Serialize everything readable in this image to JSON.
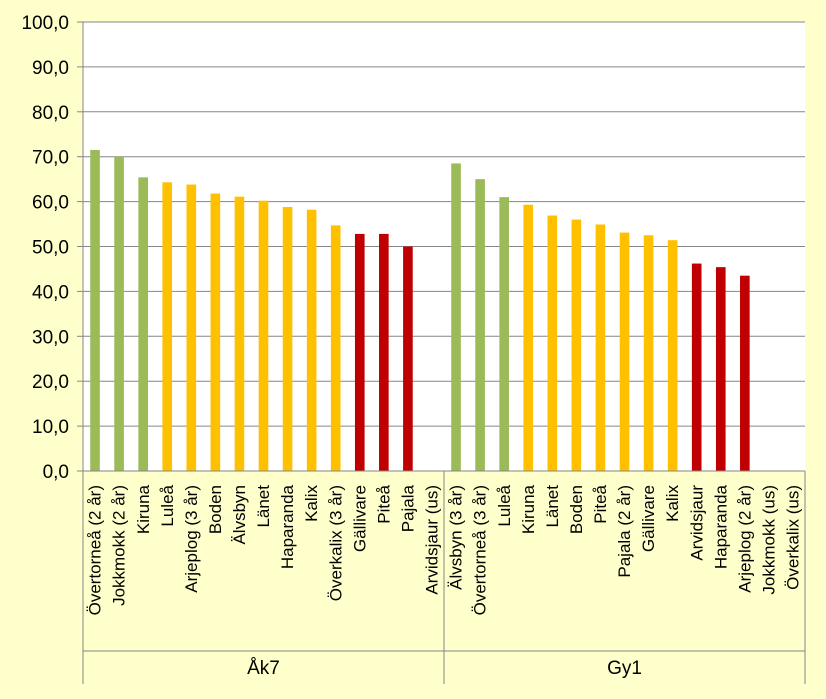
{
  "chart_data": {
    "type": "bar",
    "title": "",
    "xlabel": "",
    "ylabel": "",
    "ylim": [
      0,
      100
    ],
    "y_ticks": [
      "0,0",
      "10,0",
      "20,0",
      "30,0",
      "40,0",
      "50,0",
      "60,0",
      "70,0",
      "80,0",
      "90,0",
      "100,0"
    ],
    "grid": true,
    "legend": "none",
    "colors": {
      "green": "#9BBB59",
      "yellow": "#FFC000",
      "red": "#C00000",
      "plot_background": "#FFFFFF",
      "page_background": "#FFFFCC",
      "gridline": "#868686"
    },
    "groups": [
      {
        "label": "Åk7",
        "bars": [
          {
            "category": "Övertorneå (2 år)",
            "value": 71.5,
            "color": "green"
          },
          {
            "category": "Jokkmokk (2 år)",
            "value": 70.0,
            "color": "green"
          },
          {
            "category": "Kiruna",
            "value": 65.4,
            "color": "green"
          },
          {
            "category": "Luleå",
            "value": 64.3,
            "color": "yellow"
          },
          {
            "category": "Arjeplog (3 år)",
            "value": 63.8,
            "color": "yellow"
          },
          {
            "category": "Boden",
            "value": 61.8,
            "color": "yellow"
          },
          {
            "category": "Älvsbyn",
            "value": 61.1,
            "color": "yellow"
          },
          {
            "category": "Länet",
            "value": 60.2,
            "color": "yellow"
          },
          {
            "category": "Haparanda",
            "value": 58.8,
            "color": "yellow"
          },
          {
            "category": "Kalix",
            "value": 58.2,
            "color": "yellow"
          },
          {
            "category": "Överkalix (3 år)",
            "value": 54.7,
            "color": "yellow"
          },
          {
            "category": "Gällivare",
            "value": 52.8,
            "color": "red"
          },
          {
            "category": "Piteå",
            "value": 52.8,
            "color": "red"
          },
          {
            "category": "Pajala",
            "value": 50.0,
            "color": "red"
          },
          {
            "category": "Arvidsjaur (us)",
            "value": null,
            "color": "red"
          }
        ]
      },
      {
        "label": "Gy1",
        "bars": [
          {
            "category": "Älvsbyn (3 år)",
            "value": 68.5,
            "color": "green"
          },
          {
            "category": "Övertorneå (3 år)",
            "value": 65.0,
            "color": "green"
          },
          {
            "category": "Luleå",
            "value": 61.0,
            "color": "green"
          },
          {
            "category": "Kiruna",
            "value": 59.3,
            "color": "yellow"
          },
          {
            "category": "Länet",
            "value": 56.9,
            "color": "yellow"
          },
          {
            "category": "Boden",
            "value": 56.0,
            "color": "yellow"
          },
          {
            "category": "Piteå",
            "value": 54.9,
            "color": "yellow"
          },
          {
            "category": "Pajala (2 år)",
            "value": 53.1,
            "color": "yellow"
          },
          {
            "category": "Gällivare",
            "value": 52.5,
            "color": "yellow"
          },
          {
            "category": "Kalix",
            "value": 51.4,
            "color": "yellow"
          },
          {
            "category": "Arvidsjaur",
            "value": 46.2,
            "color": "red"
          },
          {
            "category": "Haparanda",
            "value": 45.4,
            "color": "red"
          },
          {
            "category": "Arjeplog (2 år)",
            "value": 43.5,
            "color": "red"
          },
          {
            "category": "Jokkmokk (us)",
            "value": null,
            "color": "red"
          },
          {
            "category": "Överkalix (us)",
            "value": null,
            "color": "red"
          }
        ]
      }
    ]
  }
}
